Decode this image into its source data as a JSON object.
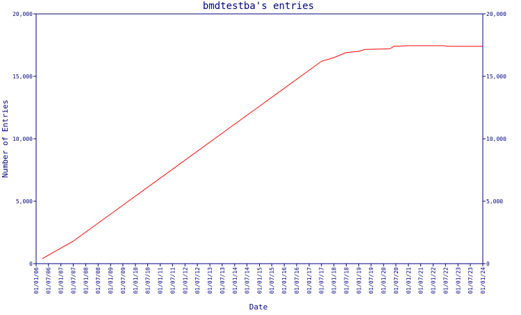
{
  "chart_data": {
    "type": "line",
    "title": "bmdtestba's entries",
    "xlabel": "Date",
    "ylabel": "Number of Entries",
    "ylim": [
      0,
      20000
    ],
    "yticks": [
      0,
      5000,
      10000,
      15000,
      20000
    ],
    "ytick_labels": [
      "0",
      "5,000",
      "10,000",
      "15,000",
      "20,000"
    ],
    "xticks": [
      "01/01/06",
      "01/07/06",
      "01/01/07",
      "01/07/07",
      "01/01/08",
      "01/07/08",
      "01/01/09",
      "01/07/09",
      "01/01/10",
      "01/07/10",
      "01/01/11",
      "01/07/11",
      "01/01/12",
      "01/07/12",
      "01/01/13",
      "01/07/13",
      "01/01/14",
      "01/07/14",
      "01/01/15",
      "01/07/15",
      "01/01/16",
      "01/07/16",
      "01/01/17",
      "01/07/17",
      "01/01/18",
      "01/07/18",
      "01/01/19",
      "01/07/19",
      "01/01/20",
      "01/07/20",
      "01/01/21",
      "01/07/21",
      "01/01/22",
      "01/07/22",
      "01/01/23",
      "01/07/23",
      "01/01/24"
    ],
    "grid": false,
    "series": [
      {
        "color": "#ff0000",
        "points": [
          {
            "x": "2006-04-01",
            "y": 400
          },
          {
            "x": "2007-07-01",
            "y": 1800
          },
          {
            "x": "2017-07-01",
            "y": 16200
          },
          {
            "x": "2018-01-01",
            "y": 16500
          },
          {
            "x": "2018-07-01",
            "y": 16900
          },
          {
            "x": "2019-01-01",
            "y": 17000
          },
          {
            "x": "2019-04-01",
            "y": 17150
          },
          {
            "x": "2020-04-01",
            "y": 17200
          },
          {
            "x": "2020-06-01",
            "y": 17400
          },
          {
            "x": "2021-01-01",
            "y": 17450
          },
          {
            "x": "2022-06-01",
            "y": 17450
          },
          {
            "x": "2022-09-01",
            "y": 17400
          },
          {
            "x": "2023-12-31",
            "y": 17400
          }
        ]
      }
    ]
  }
}
